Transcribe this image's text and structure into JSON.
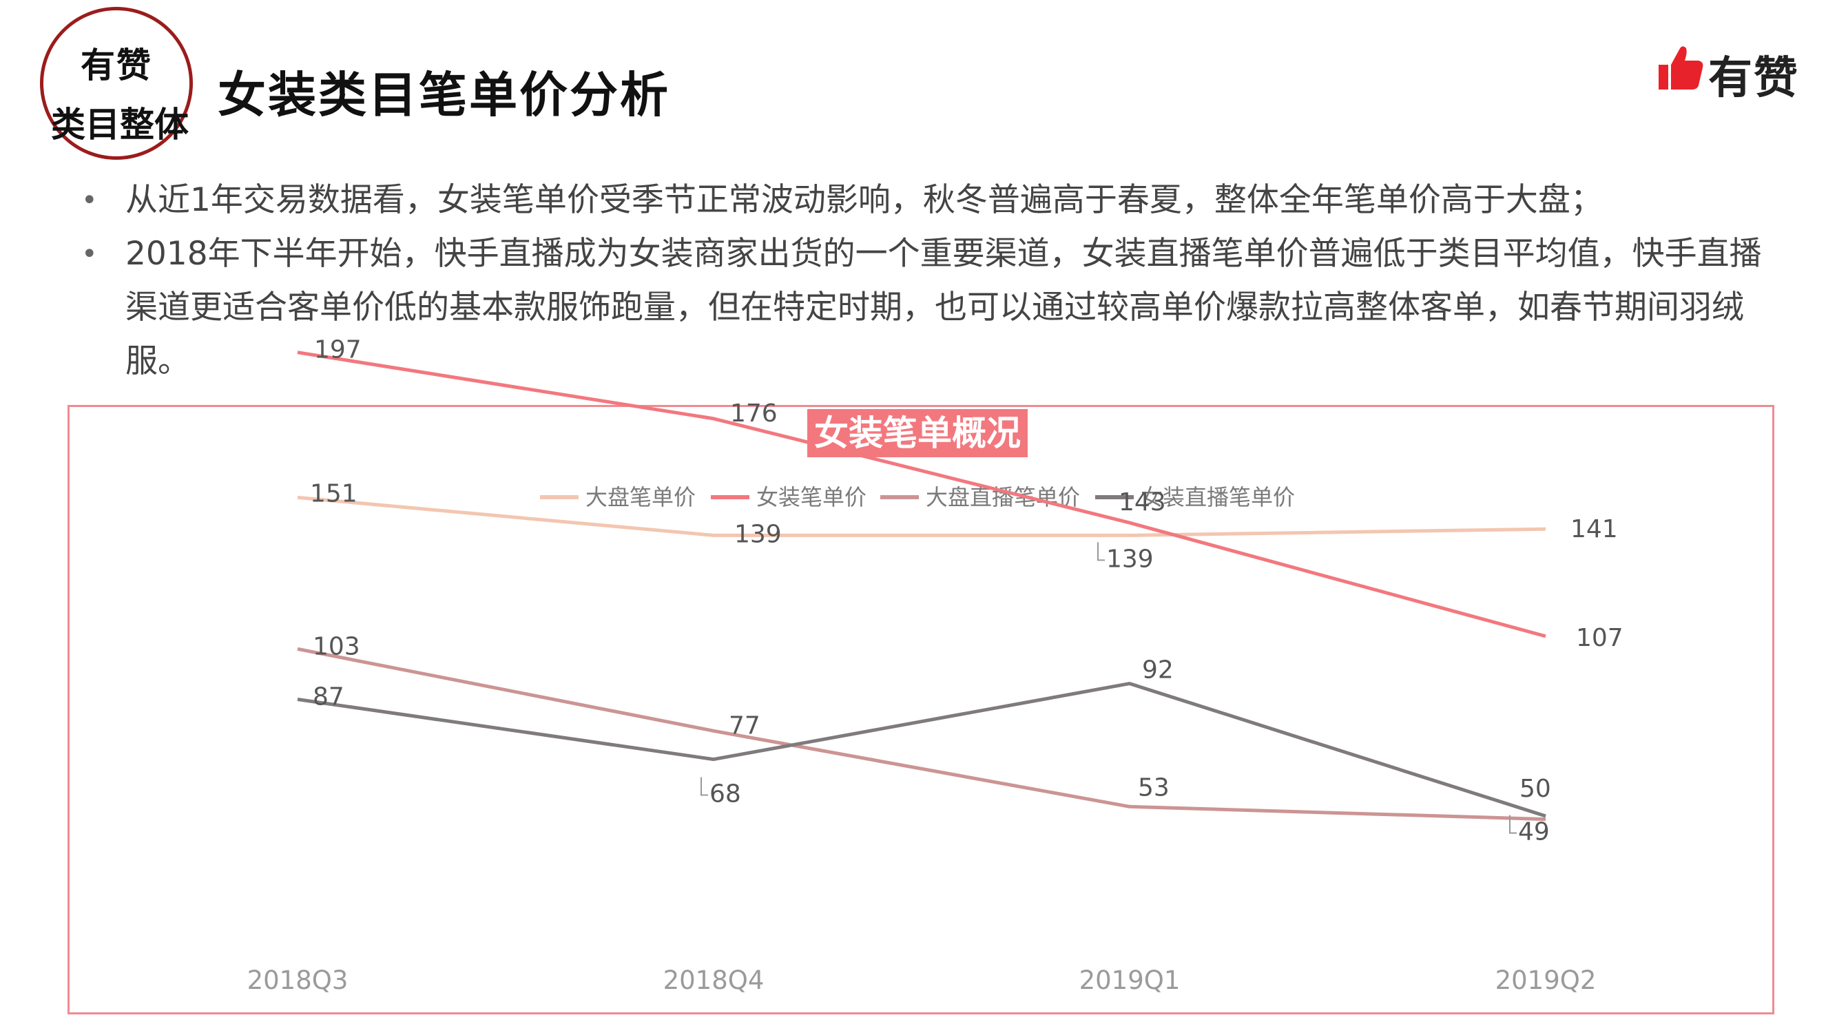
{
  "badge": {
    "line1": "有赞",
    "line2": "类目整体"
  },
  "header": {
    "title": "女装类目笔单价分析"
  },
  "brand": {
    "name": "有赞",
    "accent": "#e8222a"
  },
  "bullets": [
    "从近1年交易数据看，女装笔单价受季节正常波动影响，秋冬普遍高于春夏，整体全年笔单价高于大盘；",
    "2018年下半年开始，快手直播成为女装商家出货的一个重要渠道，女装直播笔单价普遍低于类目平均值，快手直播渠道更适合客单价低的基本款服饰跑量，但在特定时期，也可以通过较高单价爆款拉高整体客单，如春节期间羽绒服。"
  ],
  "chart_data": {
    "type": "line",
    "title": "女装笔单概况",
    "categories": [
      "2018Q3",
      "2018Q4",
      "2019Q1",
      "2019Q2"
    ],
    "series": [
      {
        "name": "大盘笔单价",
        "values": [
          151,
          139,
          139,
          141
        ],
        "color": "#f3c6b0"
      },
      {
        "name": "女装笔单价",
        "values": [
          197,
          176,
          143,
          107
        ],
        "color": "#f2787e"
      },
      {
        "name": "大盘直播笔单价",
        "values": [
          103,
          77,
          53,
          49
        ],
        "color": "#cc9494"
      },
      {
        "name": "女装直播笔单价",
        "values": [
          87,
          68,
          92,
          50
        ],
        "color": "#7f7a7d"
      }
    ],
    "xlabel": "",
    "ylabel": "",
    "ylim": [
      0,
      220
    ],
    "grid": false,
    "legend": "top-center"
  }
}
